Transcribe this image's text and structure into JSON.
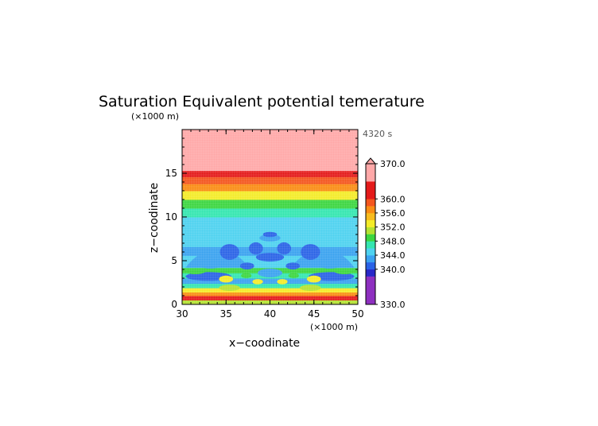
{
  "chart_data": {
    "type": "heatmap",
    "title": "Saturation Equivalent potential temerature",
    "time_label": "4320 s",
    "xlabel": "x−coodinate",
    "ylabel": "z−coodinate",
    "x_unit": "(×1000 m)",
    "y_unit": "(×1000 m)",
    "xlim": [
      30,
      50
    ],
    "ylim": [
      0,
      20
    ],
    "x_ticks": [
      "30",
      "35",
      "40",
      "45",
      "50"
    ],
    "y_ticks": [
      "0",
      "5",
      "10",
      "15"
    ],
    "colorbar": {
      "range": [
        330,
        370
      ],
      "tick_labels": [
        "370.0",
        "360.0",
        "356.0",
        "352.0",
        "348.0",
        "344.0",
        "340.0",
        "330.0"
      ],
      "tick_values": [
        370,
        360,
        356,
        352,
        348,
        344,
        340,
        330
      ],
      "levels": [
        {
          "min": 330,
          "max": 338,
          "color": "#8e30c0"
        },
        {
          "min": 338,
          "max": 340,
          "color": "#2828c8"
        },
        {
          "min": 340,
          "max": 342,
          "color": "#2a62e6"
        },
        {
          "min": 342,
          "max": 344,
          "color": "#3aa2f0"
        },
        {
          "min": 344,
          "max": 346,
          "color": "#4ed2f0"
        },
        {
          "min": 346,
          "max": 348,
          "color": "#34e6b0"
        },
        {
          "min": 348,
          "max": 350,
          "color": "#3cd640"
        },
        {
          "min": 350,
          "max": 352,
          "color": "#b4e232"
        },
        {
          "min": 352,
          "max": 354,
          "color": "#f4ec28"
        },
        {
          "min": 354,
          "max": 356,
          "color": "#f8bc1e"
        },
        {
          "min": 356,
          "max": 358,
          "color": "#fa8c14"
        },
        {
          "min": 358,
          "max": 360,
          "color": "#f4561e"
        },
        {
          "min": 360,
          "max": 365,
          "color": "#e41a1a"
        },
        {
          "min": 365,
          "max": 370,
          "color": "#ffa8a8"
        }
      ],
      "extend_top_color": "#ffa8a8"
    },
    "profile": [
      {
        "z_min": 0,
        "z_max": 0.5,
        "value": 351
      },
      {
        "z_min": 0.5,
        "z_max": 1.0,
        "value": 361
      },
      {
        "z_min": 1.0,
        "z_max": 1.4,
        "value": 357
      },
      {
        "z_min": 1.4,
        "z_max": 1.9,
        "value": 353
      },
      {
        "z_min": 1.9,
        "z_max": 2.4,
        "value": 347
      },
      {
        "z_min": 2.4,
        "z_max": 3.0,
        "value": 343
      },
      {
        "z_min": 3.0,
        "z_max": 3.6,
        "value": 347
      },
      {
        "z_min": 3.6,
        "z_max": 4.2,
        "value": 349
      },
      {
        "z_min": 4.2,
        "z_max": 5.6,
        "value": 345
      },
      {
        "z_min": 5.6,
        "z_max": 6.6,
        "value": 343
      },
      {
        "z_min": 6.6,
        "z_max": 7.4,
        "value": 345
      },
      {
        "z_min": 7.4,
        "z_max": 10.0,
        "value": 345
      },
      {
        "z_min": 10.0,
        "z_max": 11.0,
        "value": 347
      },
      {
        "z_min": 11.0,
        "z_max": 12.0,
        "value": 349
      },
      {
        "z_min": 12.0,
        "z_max": 13.0,
        "value": 353
      },
      {
        "z_min": 13.0,
        "z_max": 13.8,
        "value": 357
      },
      {
        "z_min": 13.8,
        "z_max": 14.6,
        "value": 359
      },
      {
        "z_min": 14.6,
        "z_max": 15.3,
        "value": 362
      },
      {
        "z_min": 15.3,
        "z_max": 20.0,
        "value": 368
      }
    ],
    "features": [
      {
        "shape": "hill",
        "x_center": 34,
        "z_base": 4.2,
        "x_half_width": 3.6,
        "z_height": 2.0,
        "value": 343
      },
      {
        "shape": "hill",
        "x_center": 46,
        "z_base": 4.2,
        "x_half_width": 3.6,
        "z_height": 2.0,
        "value": 343
      },
      {
        "shape": "ellipse",
        "x": 33.2,
        "z": 4.8,
        "rx": 1.6,
        "rz": 0.7,
        "value": 343
      },
      {
        "shape": "ellipse",
        "x": 46.8,
        "z": 4.8,
        "rx": 1.6,
        "rz": 0.7,
        "value": 343
      },
      {
        "shape": "ellipse",
        "x": 35.4,
        "z": 6.0,
        "rx": 1.1,
        "rz": 0.9,
        "value": 341
      },
      {
        "shape": "ellipse",
        "x": 44.6,
        "z": 6.0,
        "rx": 1.1,
        "rz": 0.9,
        "value": 341
      },
      {
        "shape": "ellipse",
        "x": 38.4,
        "z": 6.4,
        "rx": 0.8,
        "rz": 0.7,
        "value": 341
      },
      {
        "shape": "ellipse",
        "x": 41.6,
        "z": 6.4,
        "rx": 0.8,
        "rz": 0.7,
        "value": 341
      },
      {
        "shape": "ellipse",
        "x": 40.0,
        "z": 7.6,
        "rx": 1.2,
        "rz": 0.4,
        "value": 343
      },
      {
        "shape": "ellipse",
        "x": 40.0,
        "z": 8.0,
        "rx": 0.8,
        "rz": 0.3,
        "value": 341
      },
      {
        "shape": "ellipse",
        "x": 40.0,
        "z": 5.4,
        "rx": 1.6,
        "rz": 0.5,
        "value": 341
      },
      {
        "shape": "ellipse",
        "x": 37.4,
        "z": 4.4,
        "rx": 0.8,
        "rz": 0.4,
        "value": 341
      },
      {
        "shape": "ellipse",
        "x": 42.6,
        "z": 4.4,
        "rx": 0.8,
        "rz": 0.4,
        "value": 341
      },
      {
        "shape": "ellipse",
        "x": 40.0,
        "z": 3.6,
        "rx": 1.4,
        "rz": 0.5,
        "value": 343
      },
      {
        "shape": "ellipse",
        "x": 33.0,
        "z": 3.2,
        "rx": 2.6,
        "rz": 0.5,
        "value": 341
      },
      {
        "shape": "ellipse",
        "x": 47.0,
        "z": 3.2,
        "rx": 2.6,
        "rz": 0.5,
        "value": 341
      },
      {
        "shape": "ellipse",
        "x": 35.0,
        "z": 2.9,
        "rx": 0.8,
        "rz": 0.4,
        "value": 353
      },
      {
        "shape": "ellipse",
        "x": 45.0,
        "z": 2.9,
        "rx": 0.8,
        "rz": 0.4,
        "value": 353
      },
      {
        "shape": "ellipse",
        "x": 37.3,
        "z": 3.3,
        "rx": 0.6,
        "rz": 0.3,
        "value": 349
      },
      {
        "shape": "ellipse",
        "x": 42.7,
        "z": 3.3,
        "rx": 0.6,
        "rz": 0.3,
        "value": 349
      },
      {
        "shape": "ellipse",
        "x": 38.6,
        "z": 2.6,
        "rx": 0.6,
        "rz": 0.3,
        "value": 353
      },
      {
        "shape": "ellipse",
        "x": 41.4,
        "z": 2.6,
        "rx": 0.6,
        "rz": 0.3,
        "value": 353
      },
      {
        "shape": "ellipse",
        "x": 31.5,
        "z": 3.8,
        "rx": 1.2,
        "rz": 0.35,
        "value": 349
      },
      {
        "shape": "ellipse",
        "x": 48.5,
        "z": 3.8,
        "rx": 1.2,
        "rz": 0.35,
        "value": 349
      },
      {
        "shape": "ellipse",
        "x": 35.4,
        "z": 1.9,
        "rx": 1.2,
        "rz": 0.35,
        "value": 351
      },
      {
        "shape": "ellipse",
        "x": 44.6,
        "z": 1.9,
        "rx": 1.2,
        "rz": 0.35,
        "value": 351
      }
    ]
  }
}
